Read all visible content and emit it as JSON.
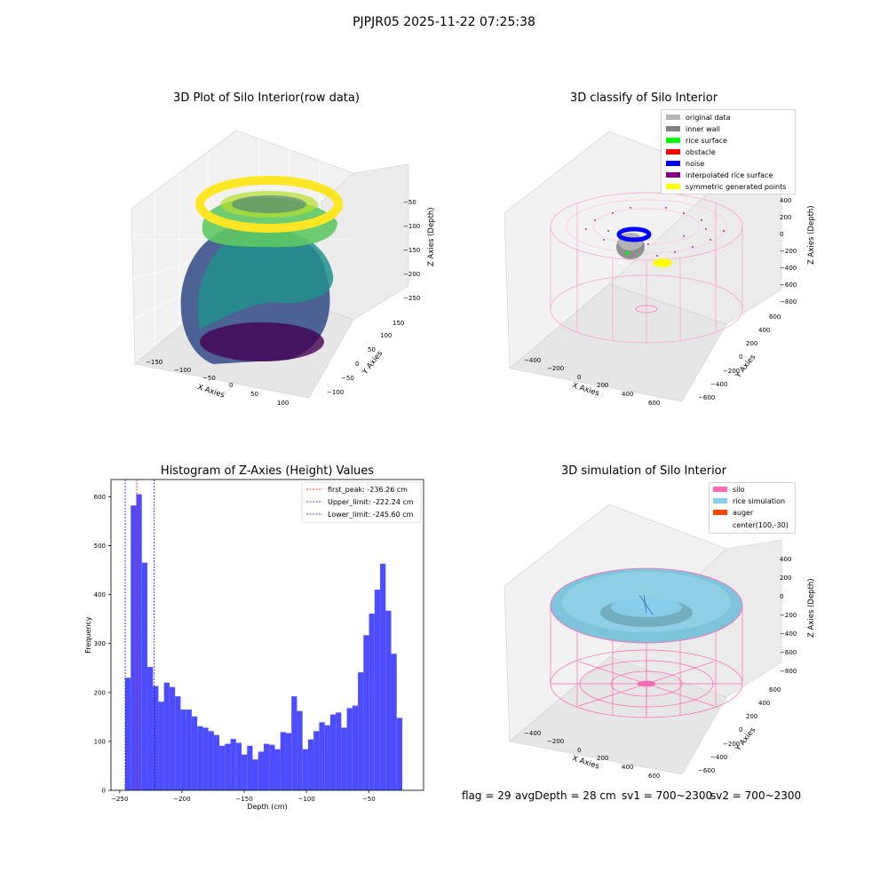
{
  "page": {
    "suptitle": "PJPJR05 2025-11-22 07:25:38"
  },
  "panels": {
    "raw": {
      "title": "3D Plot of Silo Interior(row data)",
      "xlabel": "X Axies",
      "ylabel": "Y Axies",
      "zlabel": "Z Axies (Depth)",
      "x_ticks": [
        "−150",
        "−100",
        "−50",
        "0",
        "50",
        "100"
      ],
      "y_ticks": [
        "−100",
        "−50",
        "0",
        "50",
        "100",
        "150"
      ],
      "z_ticks": [
        "−50",
        "−100",
        "−150",
        "−200",
        "−250"
      ]
    },
    "classify": {
      "title": "3D classify of Silo Interior",
      "xlabel": "X Axies",
      "ylabel": "Y Axies",
      "zlabel": "Z Axies (Depth)",
      "x_ticks": [
        "−400",
        "−200",
        "0",
        "200",
        "400",
        "600"
      ],
      "y_ticks": [
        "−600",
        "−400",
        "−200",
        "0",
        "200",
        "400",
        "600"
      ],
      "z_ticks": [
        "400",
        "200",
        "0",
        "−200",
        "−400",
        "−600",
        "−800"
      ],
      "legend": [
        {
          "label": "original data",
          "color": "#b4b4b4"
        },
        {
          "label": "inner wall",
          "color": "#808080"
        },
        {
          "label": "rice surface",
          "color": "#00ff00"
        },
        {
          "label": "obstacle",
          "color": "#ff0000"
        },
        {
          "label": "noise",
          "color": "#0000ff"
        },
        {
          "label": "interpolated rice surface",
          "color": "#800080"
        },
        {
          "label": "symmetric generated points",
          "color": "#ffff00"
        }
      ]
    },
    "simulation": {
      "title": "3D simulation of Silo Interior",
      "xlabel": "X Axies",
      "ylabel": "Y Axies",
      "zlabel": "Z Axies (Depth)",
      "x_ticks": [
        "−400",
        "−200",
        "0",
        "200",
        "400",
        "600"
      ],
      "y_ticks": [
        "−600",
        "−400",
        "−200",
        "0",
        "200",
        "400",
        "600"
      ],
      "z_ticks": [
        "400",
        "200",
        "0",
        "−200",
        "−400",
        "−600",
        "−800"
      ],
      "legend": [
        {
          "label": "silo",
          "color": "#ff69b4"
        },
        {
          "label": "rice simulation",
          "color": "#87ceeb"
        },
        {
          "label": "auger",
          "color": "#ff4500"
        },
        {
          "label": "center(100,-30)",
          "color": ""
        }
      ]
    }
  },
  "footer": {
    "flag": "flag = 29",
    "avg": "avgDepth = 28 cm",
    "sv1": "sv1 = 700~2300",
    "sv2": "sv2 = 700~2300"
  },
  "chart_data": {
    "type": "bar",
    "title": "Histogram of Z-Axies (Height) Values",
    "xlabel": "Depth (cm)",
    "ylabel": "Frequency",
    "xlim": [
      -257,
      -6
    ],
    "ylim": [
      0,
      635
    ],
    "x_ticks": [
      -250,
      -200,
      -150,
      -100,
      -50
    ],
    "x_tick_labels": [
      "−250",
      "−200",
      "−150",
      "−100",
      "−50"
    ],
    "y_ticks": [
      0,
      100,
      200,
      300,
      400,
      500,
      600
    ],
    "bin_start": -245.6,
    "bin_width": 4.45,
    "values": [
      230,
      582,
      605,
      465,
      252,
      213,
      181,
      220,
      211,
      192,
      165,
      165,
      151,
      131,
      128,
      121,
      113,
      91,
      95,
      105,
      97,
      73,
      91,
      63,
      79,
      95,
      93,
      84,
      119,
      117,
      192,
      162,
      84,
      104,
      121,
      139,
      133,
      155,
      159,
      128,
      168,
      173,
      241,
      317,
      361,
      410,
      463,
      367,
      279,
      148
    ],
    "bar_color": "#4d4dff",
    "legend_position": "upper right",
    "lines": [
      {
        "name": "first_peak: -236.26 cm",
        "x": -236.26,
        "color": "#ff0000"
      },
      {
        "name": "Upper_limit: -222.24 cm",
        "x": -222.24,
        "color": "#0000cc"
      },
      {
        "name": "Lower_limit: -245.60 cm",
        "x": -245.6,
        "color": "#0000cc"
      }
    ]
  }
}
